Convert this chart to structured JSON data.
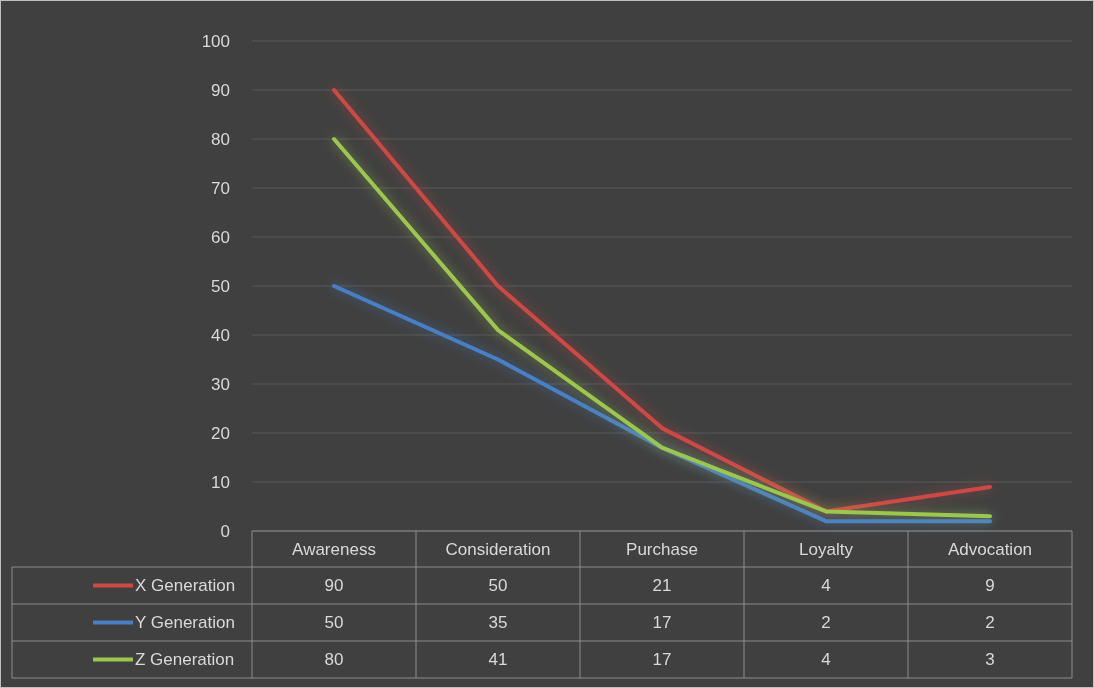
{
  "chart_data": {
    "type": "line",
    "categories": [
      "Awareness",
      "Consideration",
      "Purchase",
      "Loyalty",
      "Advocation"
    ],
    "series": [
      {
        "name": "X Generation",
        "color": "#cc4a45",
        "values": [
          90,
          50,
          21,
          4,
          9
        ]
      },
      {
        "name": "Y Generation",
        "color": "#4a7fc4",
        "values": [
          50,
          35,
          17,
          2,
          2
        ]
      },
      {
        "name": "Z Generation",
        "color": "#9cc64e",
        "values": [
          80,
          41,
          17,
          4,
          3
        ]
      }
    ],
    "ylim": [
      0,
      100
    ],
    "yticks": [
      0,
      10,
      20,
      30,
      40,
      50,
      60,
      70,
      80,
      90,
      100
    ],
    "grid": "y",
    "legend": "bottom",
    "data_labels": true,
    "marker": "none",
    "line_style": "solid"
  }
}
